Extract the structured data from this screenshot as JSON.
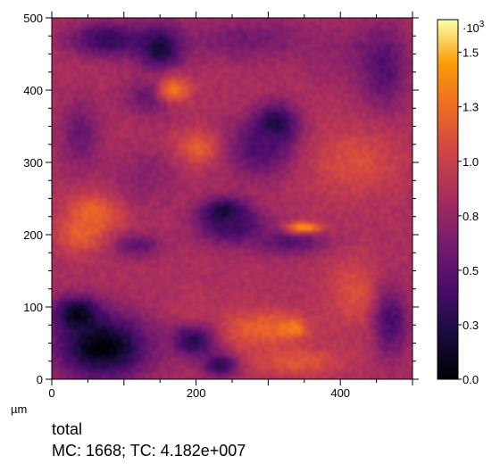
{
  "chart_data": {
    "type": "heatmap",
    "colormap": "inferno",
    "x_unit_label": "µm",
    "xlim": [
      0,
      500
    ],
    "ylim": [
      0,
      500
    ],
    "x_ticks": [
      "0",
      "200",
      "400"
    ],
    "y_ticks": [
      "0",
      "100",
      "200",
      "300",
      "400",
      "500"
    ],
    "x_tick_values": [
      0,
      200,
      400
    ],
    "y_tick_values": [
      0,
      100,
      200,
      300,
      400,
      500
    ],
    "colorbar": {
      "range": [
        0,
        1.65
      ],
      "exponent_label": "·10",
      "exponent_power": "3",
      "tick_labels": [
        "0.0",
        "0.3",
        "0.5",
        "0.8",
        "1.0",
        "1.3",
        "1.5"
      ],
      "tick_values": [
        0.0,
        0.25,
        0.5,
        0.75,
        1.0,
        1.25,
        1.5
      ]
    },
    "base_level": 0.85,
    "features": [
      {
        "x": 70,
        "y": 45,
        "rx": 80,
        "ry": 55,
        "level": 0.0
      },
      {
        "x": 35,
        "y": 90,
        "rx": 40,
        "ry": 30,
        "level": 0.05
      },
      {
        "x": 200,
        "y": 55,
        "rx": 40,
        "ry": 30,
        "level": 0.15
      },
      {
        "x": 235,
        "y": 20,
        "rx": 30,
        "ry": 20,
        "level": 0.2
      },
      {
        "x": 330,
        "y": 70,
        "rx": 25,
        "ry": 15,
        "level": 1.6
      },
      {
        "x": 290,
        "y": 70,
        "rx": 80,
        "ry": 35,
        "level": 1.2
      },
      {
        "x": 340,
        "y": 25,
        "rx": 80,
        "ry": 25,
        "level": 1.15
      },
      {
        "x": 420,
        "y": 120,
        "rx": 50,
        "ry": 60,
        "level": 1.1
      },
      {
        "x": 470,
        "y": 80,
        "rx": 30,
        "ry": 60,
        "level": 0.4
      },
      {
        "x": 60,
        "y": 230,
        "rx": 50,
        "ry": 35,
        "level": 1.25
      },
      {
        "x": 40,
        "y": 200,
        "rx": 40,
        "ry": 30,
        "level": 1.2
      },
      {
        "x": 120,
        "y": 185,
        "rx": 40,
        "ry": 20,
        "level": 0.5
      },
      {
        "x": 240,
        "y": 230,
        "rx": 40,
        "ry": 25,
        "level": 0.05
      },
      {
        "x": 250,
        "y": 210,
        "rx": 60,
        "ry": 30,
        "level": 0.35
      },
      {
        "x": 330,
        "y": 190,
        "rx": 60,
        "ry": 20,
        "level": 0.45
      },
      {
        "x": 350,
        "y": 210,
        "rx": 30,
        "ry": 10,
        "level": 1.45
      },
      {
        "x": 310,
        "y": 350,
        "rx": 35,
        "ry": 35,
        "level": 0.05
      },
      {
        "x": 290,
        "y": 320,
        "rx": 60,
        "ry": 50,
        "level": 0.4
      },
      {
        "x": 200,
        "y": 320,
        "rx": 40,
        "ry": 30,
        "level": 1.2
      },
      {
        "x": 140,
        "y": 390,
        "rx": 50,
        "ry": 30,
        "level": 0.5
      },
      {
        "x": 150,
        "y": 460,
        "rx": 40,
        "ry": 35,
        "level": 0.05
      },
      {
        "x": 80,
        "y": 470,
        "rx": 70,
        "ry": 30,
        "level": 0.3
      },
      {
        "x": 40,
        "y": 340,
        "rx": 35,
        "ry": 60,
        "level": 0.55
      },
      {
        "x": 170,
        "y": 400,
        "rx": 30,
        "ry": 25,
        "level": 1.3
      },
      {
        "x": 270,
        "y": 470,
        "rx": 120,
        "ry": 35,
        "level": 0.6
      },
      {
        "x": 420,
        "y": 450,
        "rx": 80,
        "ry": 50,
        "level": 0.7
      },
      {
        "x": 460,
        "y": 430,
        "rx": 40,
        "ry": 70,
        "level": 0.45
      },
      {
        "x": 420,
        "y": 300,
        "rx": 80,
        "ry": 60,
        "level": 1.1
      },
      {
        "x": 130,
        "y": 280,
        "rx": 60,
        "ry": 50,
        "level": 0.7
      },
      {
        "x": 200,
        "y": 100,
        "rx": 50,
        "ry": 30,
        "level": 0.9
      }
    ]
  },
  "caption": {
    "title": "total",
    "stats": "MC:  1668; TC: 4.182e+007"
  }
}
